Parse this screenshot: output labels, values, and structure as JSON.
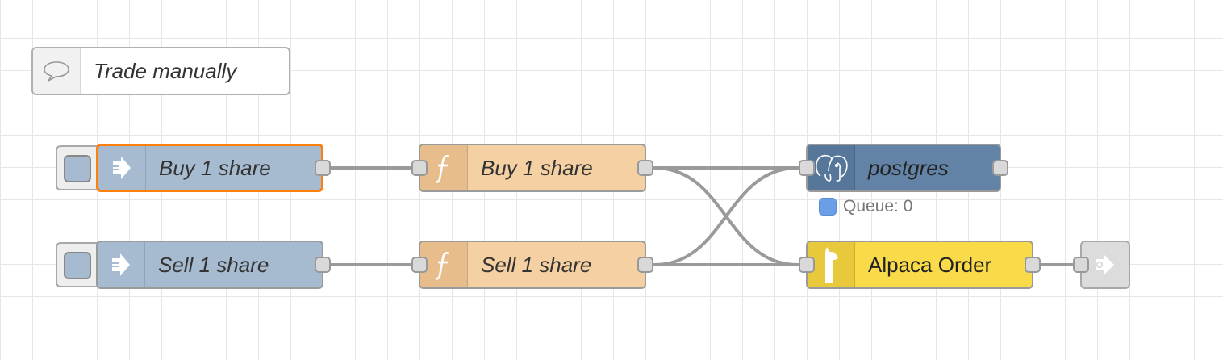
{
  "flow": {
    "comment": {
      "label": "Trade manually",
      "icon": "comment-icon"
    },
    "nodes": {
      "inject_buy": {
        "label": "Buy 1 share",
        "color": "#a6bbcf",
        "icon": "inject-arrow-icon"
      },
      "inject_sell": {
        "label": "Sell 1 share",
        "color": "#a6bbcf",
        "icon": "inject-arrow-icon"
      },
      "function_buy": {
        "label": "Buy 1 share",
        "color": "#fdd0a2",
        "icon": "function-icon"
      },
      "function_sell": {
        "label": "Sell 1 share",
        "color": "#fdd0a2",
        "icon": "function-icon"
      },
      "postgres": {
        "label": "postgres",
        "color": "#6283a6",
        "icon": "elephant-icon",
        "status": "Queue: 0"
      },
      "alpaca_order": {
        "label": "Alpaca Order",
        "color": "#f9db4a",
        "icon": "alpaca-icon"
      },
      "link_out": {
        "color": "#d8d8d8",
        "icon": "link-out-icon"
      }
    },
    "colors": {
      "selected_border": "#ff7f0e",
      "wire": "#999999",
      "status_dot": "#6a9ee6"
    }
  }
}
